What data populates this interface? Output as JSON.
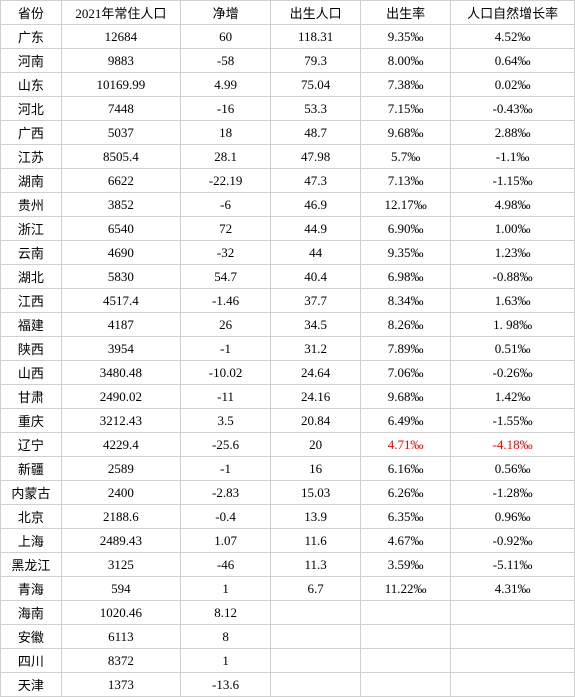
{
  "headers": {
    "province": "省份",
    "pop2021": "2021年常住人口",
    "netChange": "净增",
    "births": "出生人口",
    "birthRate": "出生率",
    "naturalGrowth": "人口自然增长率"
  },
  "rows": [
    {
      "p": "广东",
      "pop": "12684",
      "net": "60",
      "births": "118.31",
      "br": "9.35‰",
      "ng": "4.52‰"
    },
    {
      "p": "河南",
      "pop": "9883",
      "net": "-58",
      "births": "79.3",
      "br": "8.00‰",
      "ng": "0.64‰"
    },
    {
      "p": "山东",
      "pop": "10169.99",
      "net": "4.99",
      "births": "75.04",
      "br": "7.38‰",
      "ng": "0.02‰"
    },
    {
      "p": "河北",
      "pop": "7448",
      "net": "-16",
      "births": "53.3",
      "br": "7.15‰",
      "ng": "-0.43‰"
    },
    {
      "p": "广西",
      "pop": "5037",
      "net": "18",
      "births": "48.7",
      "br": "9.68‰",
      "ng": "2.88‰"
    },
    {
      "p": "江苏",
      "pop": "8505.4",
      "net": "28.1",
      "births": "47.98",
      "br": "5.7‰",
      "ng": "-1.1‰"
    },
    {
      "p": "湖南",
      "pop": "6622",
      "net": "-22.19",
      "births": "47.3",
      "br": "7.13‰",
      "ng": "-1.15‰"
    },
    {
      "p": "贵州",
      "pop": "3852",
      "net": "-6",
      "births": "46.9",
      "br": "12.17‰",
      "ng": "4.98‰"
    },
    {
      "p": "浙江",
      "pop": "6540",
      "net": "72",
      "births": "44.9",
      "br": "6.90‰",
      "ng": "1.00‰"
    },
    {
      "p": "云南",
      "pop": "4690",
      "net": "-32",
      "births": "44",
      "br": "9.35‰",
      "ng": "1.23‰"
    },
    {
      "p": "湖北",
      "pop": "5830",
      "net": "54.7",
      "births": "40.4",
      "br": "6.98‰",
      "ng": "-0.88‰"
    },
    {
      "p": "江西",
      "pop": "4517.4",
      "net": "-1.46",
      "births": "37.7",
      "br": "8.34‰",
      "ng": "1.63‰"
    },
    {
      "p": "福建",
      "pop": "4187",
      "net": "26",
      "births": "34.5",
      "br": "8.26‰",
      "ng": "1. 98‰"
    },
    {
      "p": "陕西",
      "pop": "3954",
      "net": "-1",
      "births": "31.2",
      "br": "7.89‰",
      "ng": "0.51‰"
    },
    {
      "p": "山西",
      "pop": "3480.48",
      "net": "-10.02",
      "births": "24.64",
      "br": "7.06‰",
      "ng": "-0.26‰"
    },
    {
      "p": "甘肃",
      "pop": "2490.02",
      "net": "-11",
      "births": "24.16",
      "br": "9.68‰",
      "ng": "1.42‰"
    },
    {
      "p": "重庆",
      "pop": "3212.43",
      "net": "3.5",
      "births": "20.84",
      "br": "6.49‰",
      "ng": "-1.55‰"
    },
    {
      "p": "辽宁",
      "pop": "4229.4",
      "net": "-25.6",
      "births": "20",
      "br": "4.71‰",
      "ng": "-4.18‰",
      "brRed": true,
      "ngRed": true
    },
    {
      "p": "新疆",
      "pop": "2589",
      "net": "-1",
      "births": "16",
      "br": "6.16‰",
      "ng": "0.56‰"
    },
    {
      "p": "内蒙古",
      "pop": "2400",
      "net": "-2.83",
      "births": "15.03",
      "br": "6.26‰",
      "ng": "-1.28‰"
    },
    {
      "p": "北京",
      "pop": "2188.6",
      "net": "-0.4",
      "births": "13.9",
      "br": "6.35‰",
      "ng": "0.96‰"
    },
    {
      "p": "上海",
      "pop": "2489.43",
      "net": "1.07",
      "births": "11.6",
      "br": "4.67‰",
      "ng": "-0.92‰"
    },
    {
      "p": "黑龙江",
      "pop": "3125",
      "net": "-46",
      "births": "11.3",
      "br": "3.59‰",
      "ng": "-5.11‰"
    },
    {
      "p": "青海",
      "pop": "594",
      "net": "1",
      "births": "6.7",
      "br": "11.22‰",
      "ng": "4.31‰"
    },
    {
      "p": "海南",
      "pop": "1020.46",
      "net": "8.12",
      "births": "",
      "br": "",
      "ng": ""
    },
    {
      "p": "安徽",
      "pop": "6113",
      "net": "8",
      "births": "",
      "br": "",
      "ng": ""
    },
    {
      "p": "四川",
      "pop": "8372",
      "net": "1",
      "births": "",
      "br": "",
      "ng": ""
    },
    {
      "p": "天津",
      "pop": "1373",
      "net": "-13.6",
      "births": "",
      "br": "",
      "ng": ""
    }
  ]
}
